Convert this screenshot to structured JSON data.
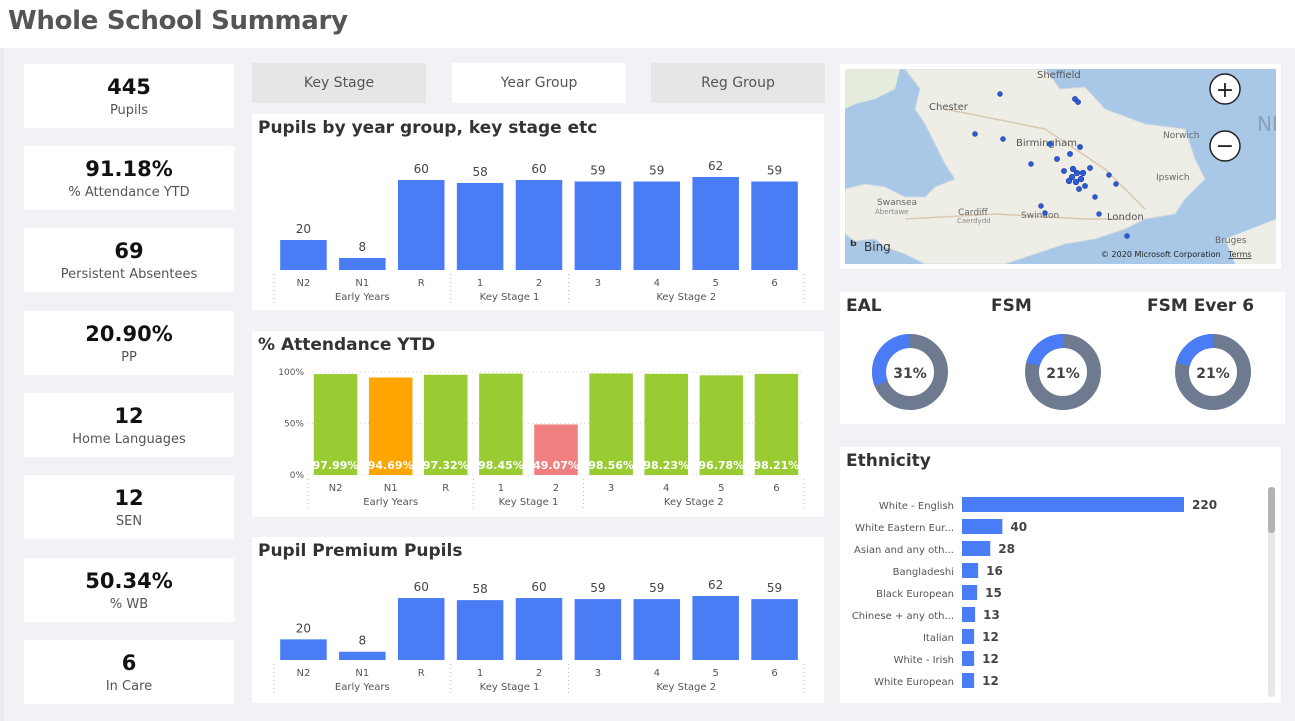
{
  "page": {
    "title": "Whole School Summary"
  },
  "kpis": [
    {
      "value": "445",
      "label": "Pupils"
    },
    {
      "value": "91.18%",
      "label": "% Attendance YTD"
    },
    {
      "value": "69",
      "label": "Persistent Absentees"
    },
    {
      "value": "20.90%",
      "label": "PP"
    },
    {
      "value": "12",
      "label": "Home Languages"
    },
    {
      "value": "12",
      "label": "SEN"
    },
    {
      "value": "50.34%",
      "label": "% WB"
    },
    {
      "value": "6",
      "label": "In Care"
    }
  ],
  "filters": {
    "key_stage": "Key Stage",
    "year_group": "Year Group",
    "reg_group": "Reg Group",
    "selected": "Year Group"
  },
  "map": {
    "places": [
      "Sheffield",
      "Chester",
      "Birmingham",
      "Norwich",
      "Swansea",
      "Abertawe",
      "Cardiff",
      "Caerdydd",
      "Swindon",
      "London",
      "Ipswich",
      "Bruges",
      "NI"
    ],
    "logo": "Bing",
    "copyright": "© 2020 Microsoft Corporation",
    "terms": "Terms",
    "zoom_in": "+",
    "zoom_out": "−"
  },
  "colors": {
    "bar_blue": "#4a7cf6",
    "att_green": "#99cc33",
    "att_orange": "#ffa500",
    "att_red": "#f08080",
    "donut_grey": "#6e7a8f"
  },
  "chart_data": [
    {
      "type": "bar",
      "title": "Pupils by year group, key stage etc",
      "categories": [
        "N2",
        "N1",
        "R",
        "1",
        "2",
        "3",
        "4",
        "5",
        "6"
      ],
      "groups": [
        {
          "label": "Early Years",
          "categories": [
            "N2",
            "N1",
            "R"
          ]
        },
        {
          "label": "Key Stage 1",
          "categories": [
            "1",
            "2"
          ]
        },
        {
          "label": "Key Stage 2",
          "categories": [
            "3",
            "4",
            "5",
            "6"
          ]
        }
      ],
      "values": [
        20,
        8,
        60,
        58,
        60,
        59,
        59,
        62,
        59
      ]
    },
    {
      "type": "bar",
      "title": "% Attendance YTD",
      "categories": [
        "N2",
        "N1",
        "R",
        "1",
        "2",
        "3",
        "4",
        "5",
        "6"
      ],
      "groups": [
        {
          "label": "Early Years",
          "categories": [
            "N2",
            "N1",
            "R"
          ]
        },
        {
          "label": "Key Stage 1",
          "categories": [
            "1",
            "2"
          ]
        },
        {
          "label": "Key Stage 2",
          "categories": [
            "3",
            "4",
            "5",
            "6"
          ]
        }
      ],
      "values": [
        97.99,
        94.69,
        97.32,
        98.45,
        49.07,
        98.56,
        98.23,
        96.78,
        98.21
      ],
      "labels": [
        "97.99%",
        "94.69%",
        "97.32%",
        "98.45%",
        "49.07%",
        "98.56%",
        "98.23%",
        "96.78%",
        "98.21%"
      ],
      "colors": [
        "#99cc33",
        "#ffa500",
        "#99cc33",
        "#99cc33",
        "#f08080",
        "#99cc33",
        "#99cc33",
        "#99cc33",
        "#99cc33"
      ],
      "yticks": [
        "0%",
        "50%",
        "100%"
      ],
      "ylim": [
        0,
        100
      ]
    },
    {
      "type": "bar",
      "title": "Pupil Premium Pupils",
      "categories": [
        "N2",
        "N1",
        "R",
        "1",
        "2",
        "3",
        "4",
        "5",
        "6"
      ],
      "groups": [
        {
          "label": "Early Years",
          "categories": [
            "N2",
            "N1",
            "R"
          ]
        },
        {
          "label": "Key Stage 1",
          "categories": [
            "1",
            "2"
          ]
        },
        {
          "label": "Key Stage 2",
          "categories": [
            "3",
            "4",
            "5",
            "6"
          ]
        }
      ],
      "values": [
        20,
        8,
        60,
        58,
        60,
        59,
        59,
        62,
        59
      ]
    },
    {
      "type": "pie",
      "title": "EAL",
      "slices": [
        {
          "value": 31
        },
        {
          "value": 69
        }
      ],
      "center_label": "31%"
    },
    {
      "type": "pie",
      "title": "FSM",
      "slices": [
        {
          "value": 21
        },
        {
          "value": 79
        }
      ],
      "center_label": "21%"
    },
    {
      "type": "pie",
      "title": "FSM Ever 6",
      "slices": [
        {
          "value": 21
        },
        {
          "value": 79
        }
      ],
      "center_label": "21%"
    },
    {
      "type": "bar",
      "orientation": "horizontal",
      "title": "Ethnicity",
      "categories": [
        "White - English",
        "White Eastern Eur...",
        "Asian and any oth...",
        "Bangladeshi",
        "Black European",
        "Chinese + any oth...",
        "Italian",
        "White - Irish",
        "White European"
      ],
      "values": [
        220,
        40,
        28,
        16,
        15,
        13,
        12,
        12,
        12
      ]
    }
  ]
}
